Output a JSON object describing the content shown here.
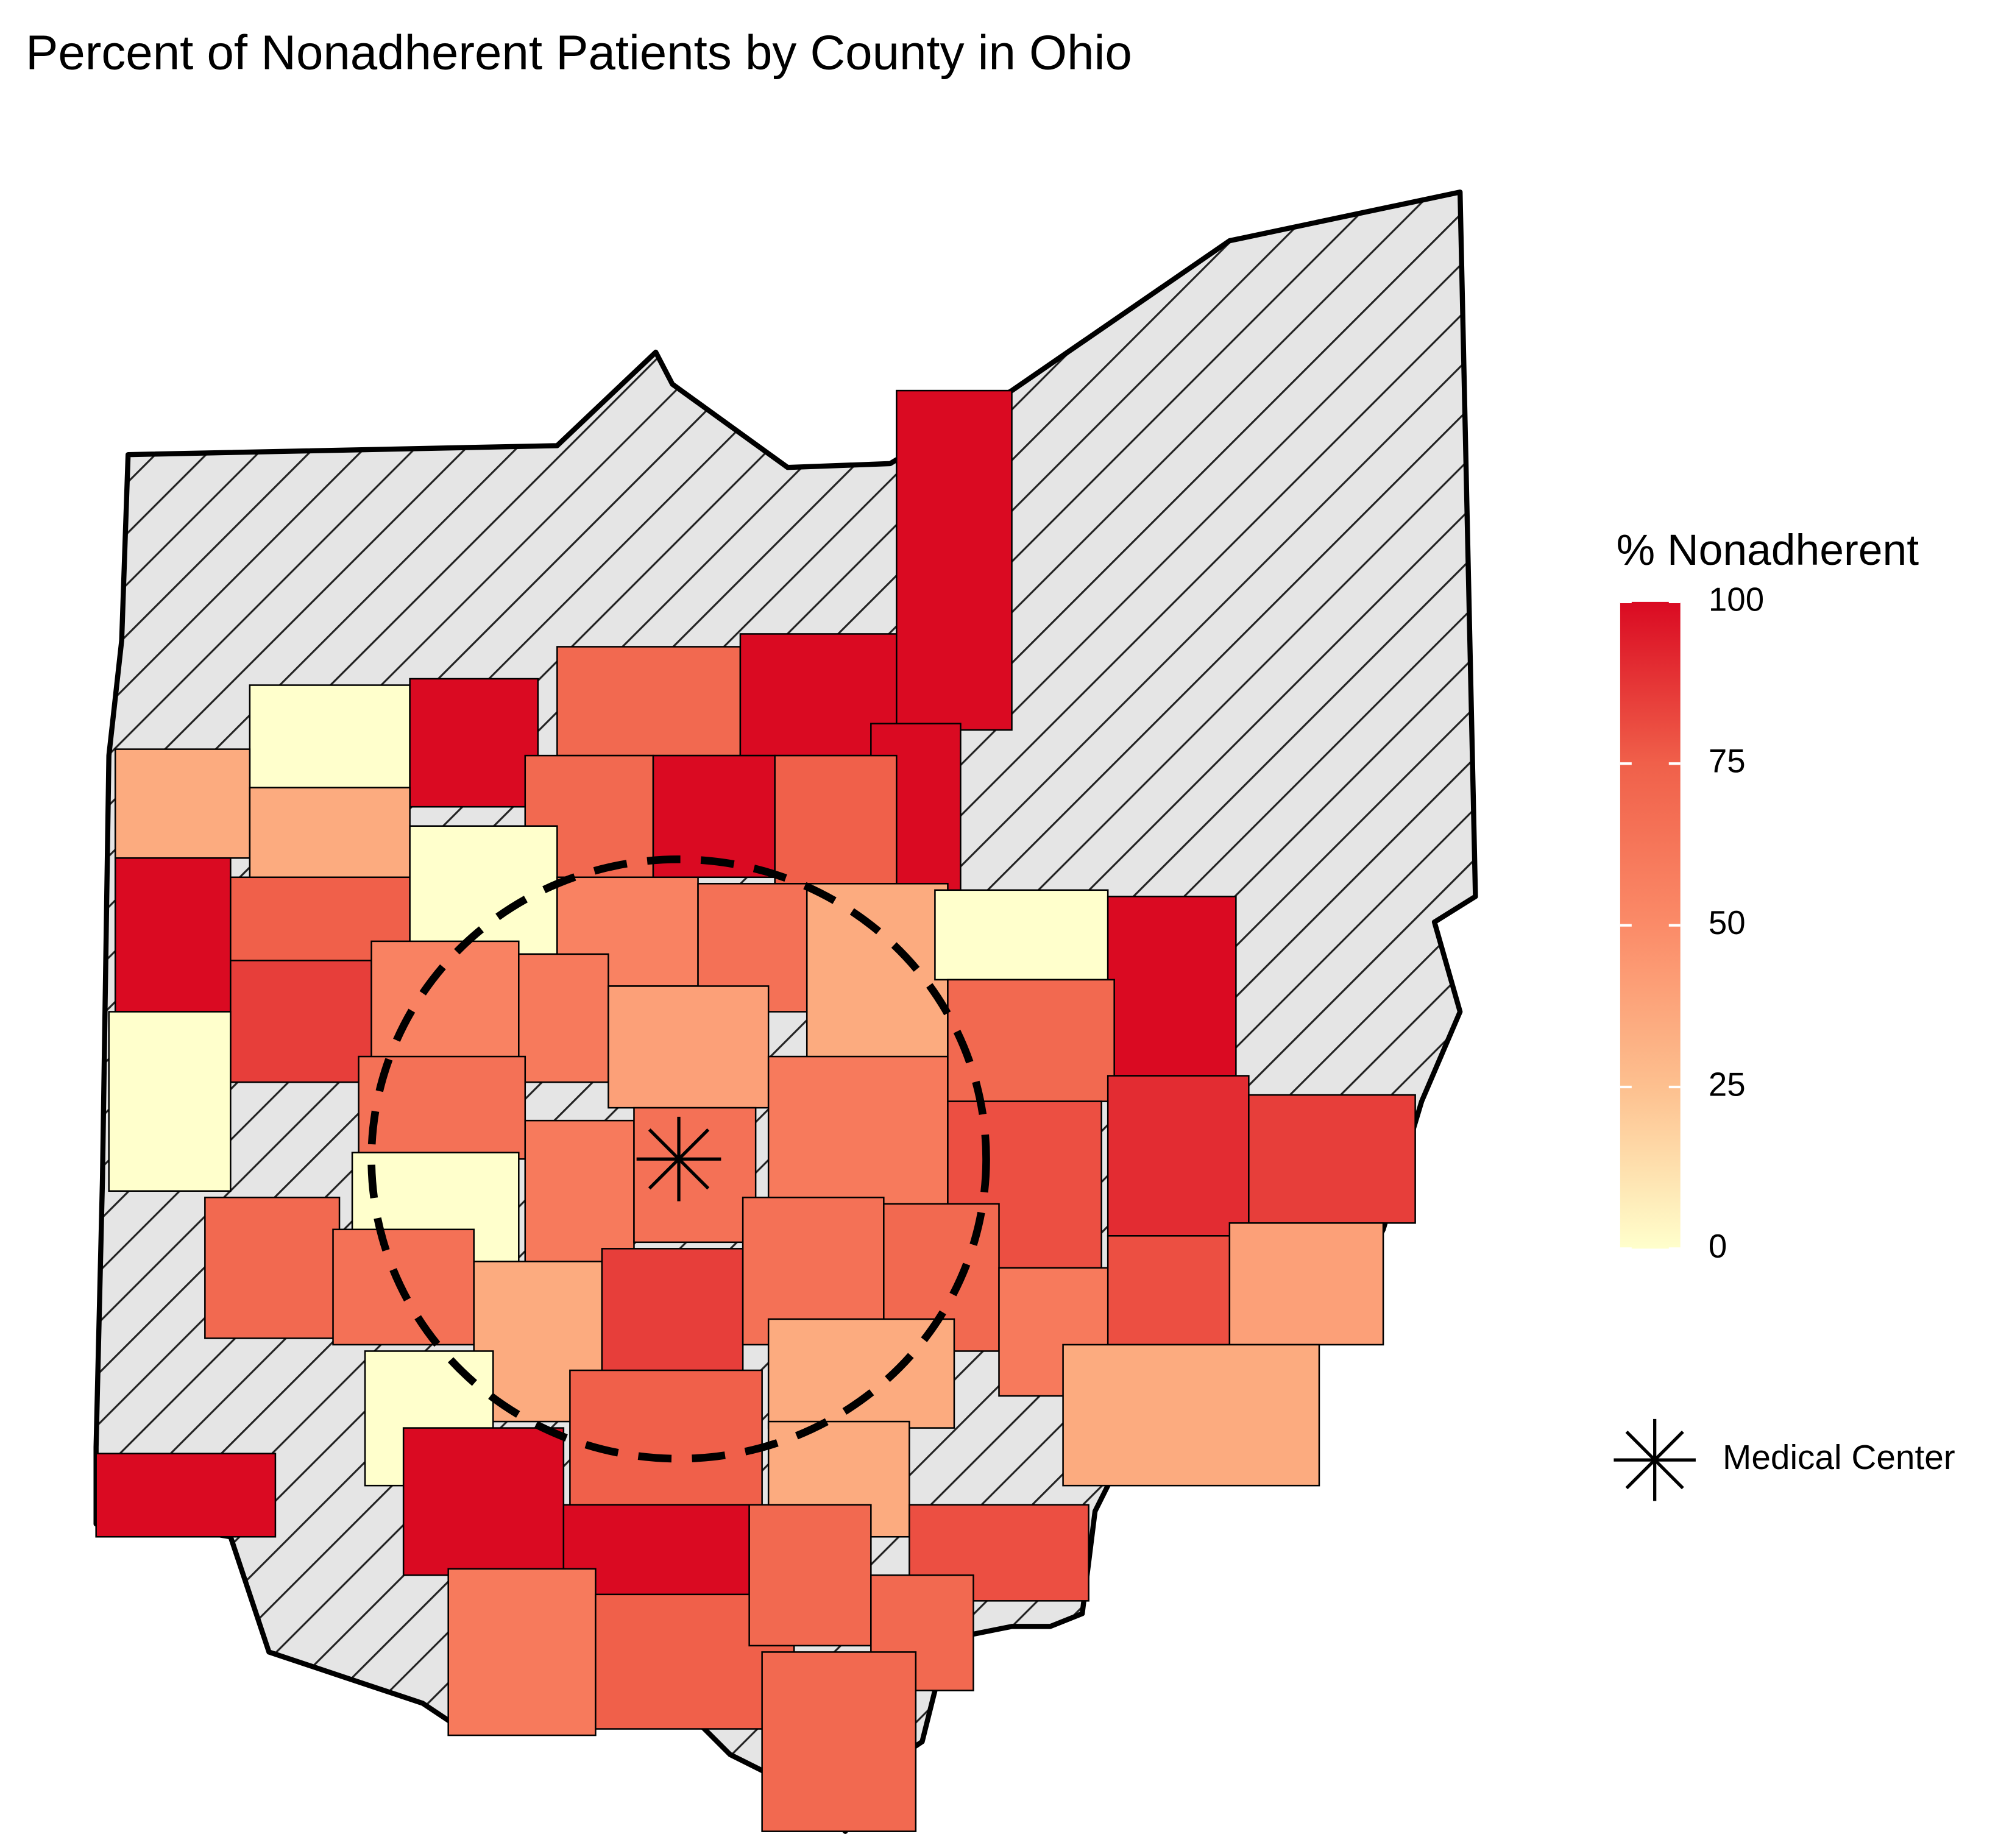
{
  "chart_data": {
    "type": "choropleth",
    "title": "Percent of Nonadherent Patients by County in Ohio",
    "legend_title": "% Nonadherent",
    "colorscale": [
      "#ffffcc",
      "#fdc08f",
      "#fb8b68",
      "#f0604a",
      "#da0a22"
    ],
    "clim": [
      0,
      100
    ],
    "cticks": [
      0,
      25,
      50,
      75,
      100
    ],
    "no_data_fill": "#e5e5e5",
    "values": [
      0,
      100,
      70,
      100,
      100,
      100,
      35,
      35,
      70,
      100,
      75,
      100,
      75,
      0,
      55,
      65,
      35,
      0,
      100,
      85,
      0,
      55,
      60,
      40,
      60,
      70,
      65,
      60,
      65,
      0,
      80,
      90,
      85,
      70,
      65,
      35,
      85,
      65,
      70,
      60,
      80,
      40,
      0,
      75,
      35,
      35,
      100,
      100,
      100,
      35,
      80,
      60,
      75,
      70,
      70,
      70
    ],
    "annotation": "Medical Center"
  }
}
